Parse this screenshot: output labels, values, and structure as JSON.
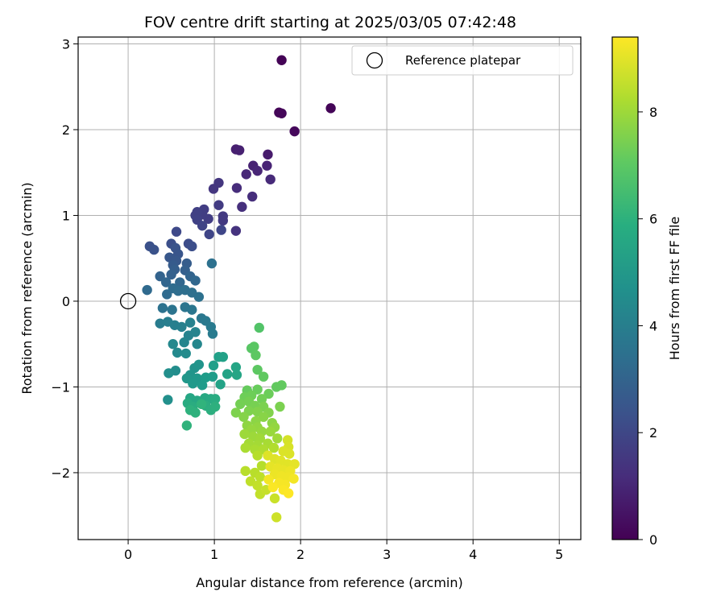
{
  "chart_data": {
    "type": "scatter",
    "title": "FOV centre drift starting at 2025/03/05 07:42:48",
    "xlabel": "Angular distance from reference (arcmin)",
    "ylabel": "Rotation from reference (arcmin)",
    "xlim": [
      -0.58,
      5.25
    ],
    "ylim": [
      -2.78,
      3.08
    ],
    "xticks": [
      0,
      1,
      2,
      3,
      4,
      5
    ],
    "yticks": [
      -2,
      -1,
      0,
      1,
      2,
      3
    ],
    "grid": true,
    "legend": {
      "placement": "top-right",
      "entries": [
        "Reference platepar"
      ]
    },
    "reference_point": {
      "name": "Reference platepar",
      "x": 0,
      "y": 0
    },
    "colorbar": {
      "label": "Hours from first FF file",
      "colormap": "viridis",
      "range": [
        0,
        9.4
      ],
      "ticks": [
        0,
        2,
        4,
        6,
        8
      ]
    },
    "series": [
      {
        "points": [
          {
            "x": 1.78,
            "y": 2.81,
            "h": 0.05
          },
          {
            "x": 2.35,
            "y": 2.25,
            "h": 0.1
          },
          {
            "x": 1.75,
            "y": 2.2,
            "h": 0.1
          },
          {
            "x": 1.78,
            "y": 2.19,
            "h": 0.15
          },
          {
            "x": 1.93,
            "y": 1.98,
            "h": 0.2
          },
          {
            "x": 1.62,
            "y": 1.71,
            "h": 0.7
          },
          {
            "x": 1.25,
            "y": 1.77,
            "h": 0.8
          },
          {
            "x": 1.29,
            "y": 1.76,
            "h": 0.85
          },
          {
            "x": 1.45,
            "y": 1.58,
            "h": 0.9
          },
          {
            "x": 1.61,
            "y": 1.58,
            "h": 0.95
          },
          {
            "x": 1.5,
            "y": 1.52,
            "h": 1.0
          },
          {
            "x": 1.37,
            "y": 1.48,
            "h": 1.05
          },
          {
            "x": 1.65,
            "y": 1.42,
            "h": 1.1
          },
          {
            "x": 1.26,
            "y": 1.32,
            "h": 1.2
          },
          {
            "x": 1.44,
            "y": 1.22,
            "h": 1.25
          },
          {
            "x": 1.32,
            "y": 1.1,
            "h": 1.3
          },
          {
            "x": 1.25,
            "y": 0.82,
            "h": 1.4
          },
          {
            "x": 1.05,
            "y": 1.38,
            "h": 1.5
          },
          {
            "x": 0.99,
            "y": 1.31,
            "h": 1.5
          },
          {
            "x": 1.1,
            "y": 0.99,
            "h": 1.6
          },
          {
            "x": 1.1,
            "y": 0.94,
            "h": 1.6
          },
          {
            "x": 1.05,
            "y": 1.12,
            "h": 1.65
          },
          {
            "x": 0.88,
            "y": 1.07,
            "h": 1.7
          },
          {
            "x": 0.93,
            "y": 0.96,
            "h": 1.7
          },
          {
            "x": 0.86,
            "y": 1.01,
            "h": 1.75
          },
          {
            "x": 0.8,
            "y": 1.04,
            "h": 1.8
          },
          {
            "x": 0.78,
            "y": 1.0,
            "h": 1.8
          },
          {
            "x": 0.8,
            "y": 0.95,
            "h": 1.85
          },
          {
            "x": 0.86,
            "y": 0.88,
            "h": 1.9
          },
          {
            "x": 0.94,
            "y": 0.78,
            "h": 1.95
          },
          {
            "x": 1.08,
            "y": 0.83,
            "h": 2.0
          },
          {
            "x": 0.56,
            "y": 0.81,
            "h": 2.1
          },
          {
            "x": 0.7,
            "y": 0.67,
            "h": 2.2
          },
          {
            "x": 0.74,
            "y": 0.64,
            "h": 2.25
          },
          {
            "x": 0.5,
            "y": 0.67,
            "h": 2.3
          },
          {
            "x": 0.25,
            "y": 0.64,
            "h": 2.35
          },
          {
            "x": 0.3,
            "y": 0.6,
            "h": 2.4
          },
          {
            "x": 0.55,
            "y": 0.62,
            "h": 2.45
          },
          {
            "x": 0.58,
            "y": 0.55,
            "h": 2.5
          },
          {
            "x": 0.48,
            "y": 0.51,
            "h": 2.55
          },
          {
            "x": 0.56,
            "y": 0.47,
            "h": 2.6
          },
          {
            "x": 0.52,
            "y": 0.42,
            "h": 2.7
          },
          {
            "x": 0.68,
            "y": 0.44,
            "h": 2.75
          },
          {
            "x": 0.54,
            "y": 0.37,
            "h": 2.8
          },
          {
            "x": 0.66,
            "y": 0.36,
            "h": 2.85
          },
          {
            "x": 0.5,
            "y": 0.31,
            "h": 2.9
          },
          {
            "x": 0.37,
            "y": 0.29,
            "h": 2.95
          },
          {
            "x": 0.72,
            "y": 0.29,
            "h": 3.0
          },
          {
            "x": 0.44,
            "y": 0.22,
            "h": 3.05
          },
          {
            "x": 0.6,
            "y": 0.22,
            "h": 3.1
          },
          {
            "x": 0.78,
            "y": 0.24,
            "h": 3.15
          },
          {
            "x": 0.22,
            "y": 0.13,
            "h": 3.2
          },
          {
            "x": 0.45,
            "y": 0.08,
            "h": 3.25
          },
          {
            "x": 0.52,
            "y": 0.15,
            "h": 3.3
          },
          {
            "x": 0.58,
            "y": 0.12,
            "h": 3.35
          },
          {
            "x": 0.66,
            "y": 0.13,
            "h": 3.4
          },
          {
            "x": 0.74,
            "y": 0.1,
            "h": 3.45
          },
          {
            "x": 0.82,
            "y": 0.05,
            "h": 3.5
          },
          {
            "x": 0.97,
            "y": 0.44,
            "h": 3.5
          },
          {
            "x": 0.4,
            "y": -0.08,
            "h": 3.55
          },
          {
            "x": 0.51,
            "y": -0.1,
            "h": 3.6
          },
          {
            "x": 0.66,
            "y": -0.07,
            "h": 3.65
          },
          {
            "x": 0.74,
            "y": -0.1,
            "h": 3.7
          },
          {
            "x": 0.85,
            "y": -0.2,
            "h": 3.75
          },
          {
            "x": 0.9,
            "y": -0.23,
            "h": 3.8
          },
          {
            "x": 0.96,
            "y": -0.3,
            "h": 3.85
          },
          {
            "x": 0.98,
            "y": -0.38,
            "h": 3.9
          },
          {
            "x": 0.37,
            "y": -0.26,
            "h": 3.95
          },
          {
            "x": 0.46,
            "y": -0.24,
            "h": 4.0
          },
          {
            "x": 0.54,
            "y": -0.28,
            "h": 4.05
          },
          {
            "x": 0.62,
            "y": -0.3,
            "h": 4.1
          },
          {
            "x": 0.72,
            "y": -0.25,
            "h": 4.15
          },
          {
            "x": 0.7,
            "y": -0.4,
            "h": 4.2
          },
          {
            "x": 0.78,
            "y": -0.36,
            "h": 4.25
          },
          {
            "x": 0.65,
            "y": -0.48,
            "h": 4.3
          },
          {
            "x": 0.8,
            "y": -0.5,
            "h": 4.35
          },
          {
            "x": 0.52,
            "y": -0.5,
            "h": 4.4
          },
          {
            "x": 0.57,
            "y": -0.6,
            "h": 4.45
          },
          {
            "x": 0.67,
            "y": -0.61,
            "h": 4.5
          },
          {
            "x": 0.55,
            "y": -0.81,
            "h": 4.6
          },
          {
            "x": 0.47,
            "y": -0.84,
            "h": 4.65
          },
          {
            "x": 0.46,
            "y": -1.15,
            "h": 4.7
          },
          {
            "x": 0.77,
            "y": -0.78,
            "h": 4.8
          },
          {
            "x": 0.82,
            "y": -0.74,
            "h": 4.85
          },
          {
            "x": 0.72,
            "y": -0.86,
            "h": 4.9
          },
          {
            "x": 0.68,
            "y": -0.9,
            "h": 4.95
          },
          {
            "x": 0.8,
            "y": -0.9,
            "h": 5.0
          },
          {
            "x": 0.75,
            "y": -0.96,
            "h": 5.05
          },
          {
            "x": 0.86,
            "y": -0.98,
            "h": 5.1
          },
          {
            "x": 0.9,
            "y": -0.89,
            "h": 5.15
          },
          {
            "x": 0.98,
            "y": -0.88,
            "h": 5.2
          },
          {
            "x": 0.99,
            "y": -0.75,
            "h": 5.25
          },
          {
            "x": 1.05,
            "y": -0.65,
            "h": 5.3
          },
          {
            "x": 1.1,
            "y": -0.65,
            "h": 5.35
          },
          {
            "x": 1.07,
            "y": -0.97,
            "h": 5.4
          },
          {
            "x": 1.15,
            "y": -0.85,
            "h": 5.45
          },
          {
            "x": 1.25,
            "y": -0.77,
            "h": 5.5
          },
          {
            "x": 1.26,
            "y": -0.86,
            "h": 5.5
          },
          {
            "x": 0.72,
            "y": -1.13,
            "h": 5.55
          },
          {
            "x": 0.8,
            "y": -1.16,
            "h": 5.6
          },
          {
            "x": 0.89,
            "y": -1.13,
            "h": 5.65
          },
          {
            "x": 0.96,
            "y": -1.14,
            "h": 5.7
          },
          {
            "x": 1.01,
            "y": -1.14,
            "h": 5.75
          },
          {
            "x": 0.69,
            "y": -1.19,
            "h": 5.75
          },
          {
            "x": 0.75,
            "y": -1.23,
            "h": 5.8
          },
          {
            "x": 0.9,
            "y": -1.22,
            "h": 5.85
          },
          {
            "x": 0.96,
            "y": -1.27,
            "h": 5.9
          },
          {
            "x": 1.01,
            "y": -1.23,
            "h": 5.95
          },
          {
            "x": 0.72,
            "y": -1.27,
            "h": 6.0
          },
          {
            "x": 0.78,
            "y": -1.3,
            "h": 6.0
          },
          {
            "x": 0.68,
            "y": -1.45,
            "h": 6.05
          },
          {
            "x": 0.85,
            "y": -1.2,
            "h": 6.1
          },
          {
            "x": 1.52,
            "y": -0.31,
            "h": 6.8
          },
          {
            "x": 1.43,
            "y": -0.55,
            "h": 6.9
          },
          {
            "x": 1.46,
            "y": -0.53,
            "h": 6.95
          },
          {
            "x": 1.48,
            "y": -0.63,
            "h": 7.0
          },
          {
            "x": 1.5,
            "y": -0.8,
            "h": 7.0
          },
          {
            "x": 1.57,
            "y": -0.88,
            "h": 7.05
          },
          {
            "x": 1.72,
            "y": -1.0,
            "h": 7.1
          },
          {
            "x": 1.78,
            "y": -0.98,
            "h": 7.1
          },
          {
            "x": 1.38,
            "y": -1.04,
            "h": 7.15
          },
          {
            "x": 1.5,
            "y": -1.03,
            "h": 7.2
          },
          {
            "x": 1.63,
            "y": -1.08,
            "h": 7.25
          },
          {
            "x": 1.35,
            "y": -1.12,
            "h": 7.3
          },
          {
            "x": 1.43,
            "y": -1.1,
            "h": 7.3
          },
          {
            "x": 1.55,
            "y": -1.14,
            "h": 7.35
          },
          {
            "x": 1.4,
            "y": -1.17,
            "h": 7.4
          },
          {
            "x": 1.3,
            "y": -1.2,
            "h": 7.4
          },
          {
            "x": 1.47,
            "y": -1.22,
            "h": 7.45
          },
          {
            "x": 1.57,
            "y": -1.23,
            "h": 7.5
          },
          {
            "x": 1.76,
            "y": -1.23,
            "h": 7.5
          },
          {
            "x": 1.25,
            "y": -1.3,
            "h": 7.55
          },
          {
            "x": 1.4,
            "y": -1.28,
            "h": 7.55
          },
          {
            "x": 1.5,
            "y": -1.29,
            "h": 7.6
          },
          {
            "x": 1.63,
            "y": -1.3,
            "h": 7.6
          },
          {
            "x": 1.34,
            "y": -1.35,
            "h": 7.65
          },
          {
            "x": 1.57,
            "y": -1.35,
            "h": 7.7
          },
          {
            "x": 1.48,
            "y": -1.4,
            "h": 7.75
          },
          {
            "x": 1.67,
            "y": -1.42,
            "h": 7.75
          },
          {
            "x": 1.38,
            "y": -1.45,
            "h": 7.8
          },
          {
            "x": 1.5,
            "y": -1.47,
            "h": 7.85
          },
          {
            "x": 1.7,
            "y": -1.47,
            "h": 7.85
          },
          {
            "x": 1.43,
            "y": -1.5,
            "h": 7.9
          },
          {
            "x": 1.55,
            "y": -1.52,
            "h": 7.9
          },
          {
            "x": 1.65,
            "y": -1.52,
            "h": 7.95
          },
          {
            "x": 1.35,
            "y": -1.55,
            "h": 8.0
          },
          {
            "x": 1.45,
            "y": -1.58,
            "h": 8.0
          },
          {
            "x": 1.53,
            "y": -1.6,
            "h": 8.05
          },
          {
            "x": 1.73,
            "y": -1.6,
            "h": 8.05
          },
          {
            "x": 1.4,
            "y": -1.66,
            "h": 8.1
          },
          {
            "x": 1.5,
            "y": -1.68,
            "h": 8.1
          },
          {
            "x": 1.62,
            "y": -1.66,
            "h": 8.15
          },
          {
            "x": 1.36,
            "y": -1.71,
            "h": 8.2
          },
          {
            "x": 1.47,
            "y": -1.73,
            "h": 8.2
          },
          {
            "x": 1.57,
            "y": -1.73,
            "h": 8.25
          },
          {
            "x": 1.69,
            "y": -1.71,
            "h": 8.3
          },
          {
            "x": 1.5,
            "y": -1.8,
            "h": 8.35
          },
          {
            "x": 1.55,
            "y": -1.92,
            "h": 8.35
          },
          {
            "x": 1.36,
            "y": -1.98,
            "h": 8.4
          },
          {
            "x": 1.47,
            "y": -2.0,
            "h": 8.4
          },
          {
            "x": 1.53,
            "y": -2.05,
            "h": 8.45
          },
          {
            "x": 1.42,
            "y": -2.1,
            "h": 8.5
          },
          {
            "x": 1.5,
            "y": -2.15,
            "h": 8.55
          },
          {
            "x": 1.53,
            "y": -2.25,
            "h": 8.55
          },
          {
            "x": 1.6,
            "y": -2.2,
            "h": 8.6
          },
          {
            "x": 1.7,
            "y": -2.3,
            "h": 8.65
          },
          {
            "x": 1.72,
            "y": -2.52,
            "h": 8.7
          },
          {
            "x": 1.85,
            "y": -1.62,
            "h": 8.8
          },
          {
            "x": 1.86,
            "y": -1.7,
            "h": 8.85
          },
          {
            "x": 1.8,
            "y": -1.75,
            "h": 8.9
          },
          {
            "x": 1.87,
            "y": -1.78,
            "h": 8.9
          },
          {
            "x": 1.62,
            "y": -1.8,
            "h": 8.95
          },
          {
            "x": 1.7,
            "y": -1.84,
            "h": 8.95
          },
          {
            "x": 1.77,
            "y": -1.86,
            "h": 9.0
          },
          {
            "x": 1.85,
            "y": -1.9,
            "h": 9.0
          },
          {
            "x": 1.93,
            "y": -1.9,
            "h": 9.05
          },
          {
            "x": 1.65,
            "y": -1.93,
            "h": 9.05
          },
          {
            "x": 1.73,
            "y": -1.95,
            "h": 9.1
          },
          {
            "x": 1.8,
            "y": -1.97,
            "h": 9.1
          },
          {
            "x": 1.88,
            "y": -1.98,
            "h": 9.15
          },
          {
            "x": 1.7,
            "y": -2.02,
            "h": 9.15
          },
          {
            "x": 1.78,
            "y": -2.04,
            "h": 9.2
          },
          {
            "x": 1.86,
            "y": -2.05,
            "h": 9.2
          },
          {
            "x": 1.92,
            "y": -2.07,
            "h": 9.25
          },
          {
            "x": 1.63,
            "y": -2.08,
            "h": 9.25
          },
          {
            "x": 1.75,
            "y": -2.12,
            "h": 9.3
          },
          {
            "x": 1.82,
            "y": -2.14,
            "h": 9.3
          },
          {
            "x": 1.68,
            "y": -2.17,
            "h": 9.35
          },
          {
            "x": 1.8,
            "y": -2.2,
            "h": 9.35
          },
          {
            "x": 1.86,
            "y": -2.24,
            "h": 9.4
          }
        ]
      }
    ]
  }
}
